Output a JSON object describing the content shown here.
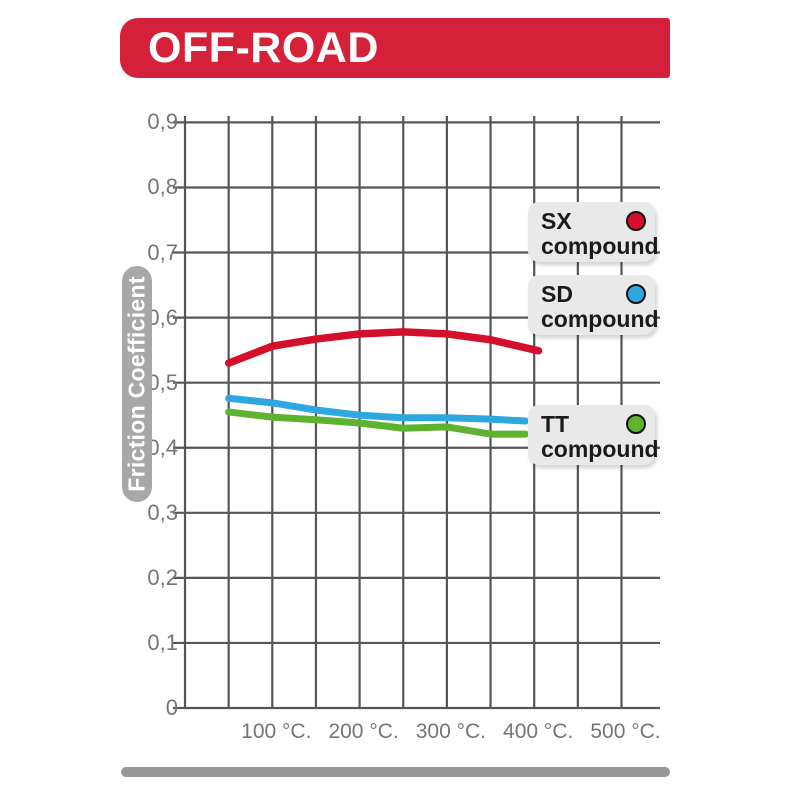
{
  "banner": {
    "title": "OFF-ROAD"
  },
  "colors": {
    "banner_bg": "#d52039",
    "banner_text": "#ffffff",
    "grid": "#565659",
    "tick_text": "#757579",
    "ylabel_pill_bg": "#a8a8ab",
    "ylabel_text": "#ffffff",
    "legend_bg": "#e9e9e9",
    "legend_text": "#1b1b1b",
    "bottom_bar": "#97979a"
  },
  "legend": {
    "items": [
      {
        "code": "SX",
        "label": "compound",
        "color": "#d40f2c"
      },
      {
        "code": "SD",
        "label": "compound",
        "color": "#2da7e0"
      },
      {
        "code": "TT",
        "label": "compound",
        "color": "#5db32f"
      }
    ]
  },
  "chart_data": {
    "type": "line",
    "title": "OFF-ROAD",
    "xlabel": "",
    "ylabel": "Friction Coefficient",
    "xlim": [
      0,
      550
    ],
    "ylim": [
      0,
      0.9
    ],
    "grid": true,
    "x_gridline_step_degC": 50,
    "y_gridline_step": 0.1,
    "legend_position": "inside-right",
    "x_ticks": [
      {
        "value": 100,
        "label": "100 °C."
      },
      {
        "value": 200,
        "label": "200 °C."
      },
      {
        "value": 300,
        "label": "300 °C."
      },
      {
        "value": 400,
        "label": "400 °C."
      },
      {
        "value": 500,
        "label": "500 °C."
      }
    ],
    "y_ticks": [
      {
        "value": 0.0,
        "label": "0"
      },
      {
        "value": 0.1,
        "label": "0,1"
      },
      {
        "value": 0.2,
        "label": "0,2"
      },
      {
        "value": 0.3,
        "label": "0,3"
      },
      {
        "value": 0.4,
        "label": "0,4"
      },
      {
        "value": 0.5,
        "label": "0,5"
      },
      {
        "value": 0.6,
        "label": "0,6"
      },
      {
        "value": 0.7,
        "label": "0,7"
      },
      {
        "value": 0.8,
        "label": "0,8"
      },
      {
        "value": 0.9,
        "label": "0,9"
      }
    ],
    "series": [
      {
        "name": "SX compound",
        "color": "#d40f2c",
        "x": [
          50,
          100,
          150,
          200,
          250,
          300,
          350,
          405
        ],
        "y": [
          0.53,
          0.556,
          0.567,
          0.575,
          0.578,
          0.575,
          0.566,
          0.549
        ]
      },
      {
        "name": "SD compound",
        "color": "#2da7e0",
        "x": [
          50,
          100,
          150,
          200,
          250,
          300,
          350,
          390
        ],
        "y": [
          0.476,
          0.469,
          0.458,
          0.45,
          0.446,
          0.446,
          0.444,
          0.441
        ]
      },
      {
        "name": "TT compound",
        "color": "#5db32f",
        "x": [
          50,
          100,
          150,
          200,
          250,
          300,
          350,
          390
        ],
        "y": [
          0.455,
          0.447,
          0.443,
          0.438,
          0.43,
          0.432,
          0.421,
          0.421
        ]
      }
    ]
  }
}
